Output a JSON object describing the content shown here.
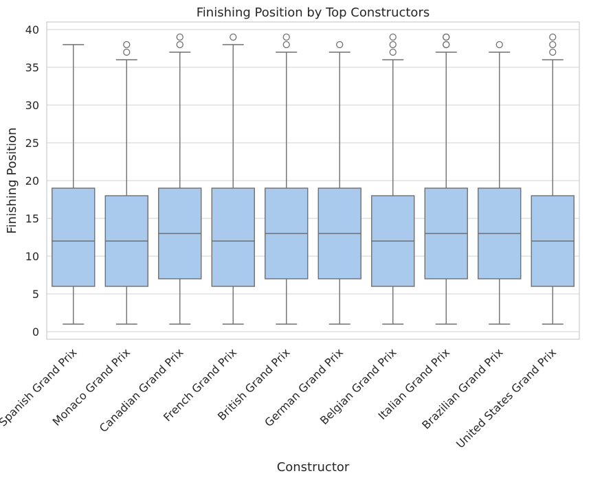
{
  "chart_data": {
    "type": "box",
    "title": "Finishing Position by Top Constructors",
    "xlabel": "Constructor",
    "ylabel": "Finishing Position",
    "ylim": [
      -1,
      41
    ],
    "yticks": [
      0,
      5,
      10,
      15,
      20,
      25,
      30,
      35,
      40
    ],
    "grid": true,
    "colors": {
      "box_fill": "#a9c9ed",
      "line": "#6f6f6f",
      "grid": "#d0d0d0",
      "spine": "#cccccc"
    },
    "categories": [
      "Spanish Grand Prix",
      "Monaco Grand Prix",
      "Canadian Grand Prix",
      "French Grand Prix",
      "British Grand Prix",
      "German Grand Prix",
      "Belgian Grand Prix",
      "Italian Grand Prix",
      "Brazilian Grand Prix",
      "United States Grand Prix"
    ],
    "boxes": [
      {
        "whislo": 1,
        "q1": 6,
        "med": 12,
        "q3": 19,
        "whishi": 38,
        "fliers": []
      },
      {
        "whislo": 1,
        "q1": 6,
        "med": 12,
        "q3": 18,
        "whishi": 36,
        "fliers": [
          37,
          38
        ]
      },
      {
        "whislo": 1,
        "q1": 7,
        "med": 13,
        "q3": 19,
        "whishi": 37,
        "fliers": [
          38,
          39
        ]
      },
      {
        "whislo": 1,
        "q1": 6,
        "med": 12,
        "q3": 19,
        "whishi": 38,
        "fliers": [
          39
        ]
      },
      {
        "whislo": 1,
        "q1": 7,
        "med": 13,
        "q3": 19,
        "whishi": 37,
        "fliers": [
          38,
          39
        ]
      },
      {
        "whislo": 1,
        "q1": 7,
        "med": 13,
        "q3": 19,
        "whishi": 37,
        "fliers": [
          38
        ]
      },
      {
        "whislo": 1,
        "q1": 6,
        "med": 12,
        "q3": 18,
        "whishi": 36,
        "fliers": [
          37,
          38,
          39
        ]
      },
      {
        "whislo": 1,
        "q1": 7,
        "med": 13,
        "q3": 19,
        "whishi": 37,
        "fliers": [
          38,
          38,
          39,
          39
        ]
      },
      {
        "whislo": 1,
        "q1": 7,
        "med": 13,
        "q3": 19,
        "whishi": 37,
        "fliers": [
          38
        ]
      },
      {
        "whislo": 1,
        "q1": 6,
        "med": 12,
        "q3": 18,
        "whishi": 36,
        "fliers": [
          37,
          38,
          39
        ]
      }
    ]
  }
}
